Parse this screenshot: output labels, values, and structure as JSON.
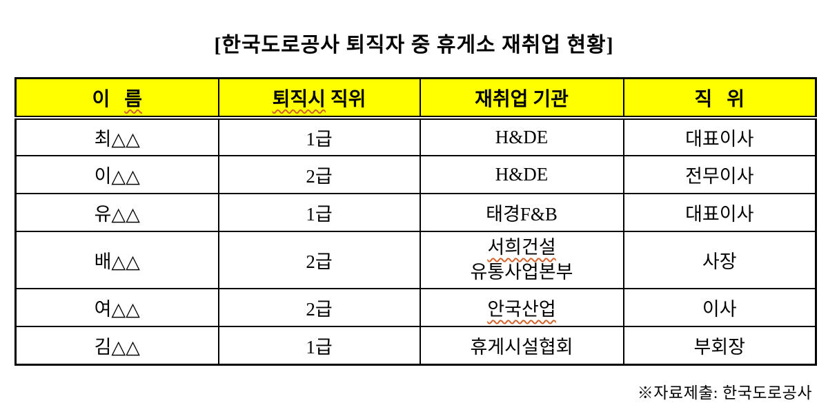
{
  "page": {
    "title": "[한국도로공사 퇴직자 중 휴게소 재취업 현황]",
    "footer_note": "※자료제출: 한국도로공사"
  },
  "colors": {
    "background": "#ffffff",
    "text": "#000000",
    "table_border": "#000000",
    "header_bg": "#ffff00",
    "spellcheck_underline": "#d2622a"
  },
  "table": {
    "headers": [
      {
        "pre": "이   ",
        "wavy": "름",
        "post": ""
      },
      {
        "pre": "",
        "wavy": "퇴직시",
        "post": " 직위"
      },
      {
        "pre": "재취업 기관",
        "wavy": "",
        "post": ""
      },
      {
        "pre": "직   위",
        "wavy": "",
        "post": ""
      }
    ],
    "rows": [
      {
        "name": "최△△",
        "rank": "1급",
        "org": "H&DE",
        "position": "대표이사"
      },
      {
        "name": "이△△",
        "rank": "2급",
        "org": "H&DE",
        "position": "전무이사"
      },
      {
        "name": "유△△",
        "rank": "1급",
        "org": "태경F&B",
        "position": "대표이사"
      },
      {
        "name": "배△△",
        "rank": "2급",
        "org": "서희건설",
        "org_line2": "유통사업본부",
        "position": "사장"
      },
      {
        "name": "여△△",
        "rank": "2급",
        "org": "안국산업",
        "position": "이사"
      },
      {
        "name": "김△△",
        "rank": "1급",
        "org": "휴게시설협회",
        "position": "부회장"
      }
    ]
  }
}
